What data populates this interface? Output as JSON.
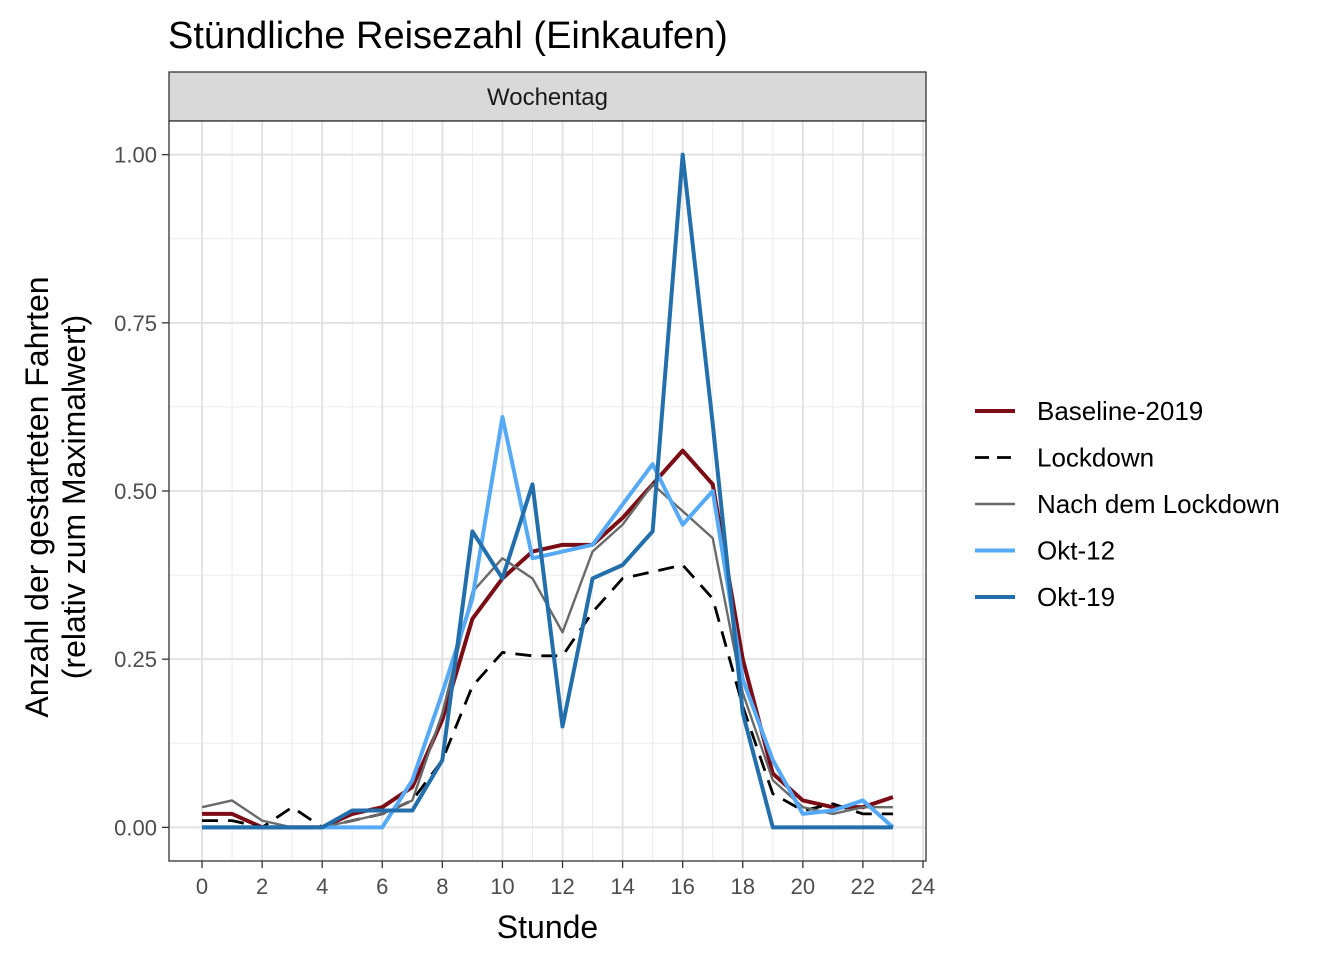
{
  "chart_data": {
    "type": "line",
    "title": "Stündliche Reisezahl (Einkaufen)",
    "facet_label": "Wochentag",
    "xlabel": "Stunde",
    "ylabel_lines": [
      "Anzahl der gestarteten Fahrten",
      "(relativ zum Maximalwert)"
    ],
    "xlim": [
      -1.1,
      24.1
    ],
    "ylim": [
      -0.05,
      1.05
    ],
    "x_ticks": [
      0,
      2,
      4,
      6,
      8,
      10,
      12,
      14,
      16,
      18,
      20,
      22,
      24
    ],
    "y_ticks": [
      0,
      0.25,
      0.5,
      0.75,
      1
    ],
    "y_tick_labels": [
      "0.00",
      "0.25",
      "0.50",
      "0.75",
      "1.00"
    ],
    "grid": true,
    "legend_position": "right",
    "x": [
      0,
      1,
      2,
      3,
      4,
      5,
      6,
      7,
      8,
      9,
      10,
      11,
      12,
      13,
      14,
      15,
      16,
      17,
      18,
      19,
      20,
      21,
      22,
      23
    ],
    "series": [
      {
        "name": "Baseline-2019",
        "color": "#7b0d16",
        "dash": "solid",
        "width": "thick",
        "values": [
          0.02,
          0.02,
          0.0,
          0.0,
          0.0,
          0.02,
          0.03,
          0.06,
          0.16,
          0.31,
          0.37,
          0.41,
          0.42,
          0.42,
          0.46,
          0.51,
          0.56,
          0.51,
          0.25,
          0.08,
          0.04,
          0.03,
          0.03,
          0.045
        ]
      },
      {
        "name": "Lockdown",
        "color": "#000000",
        "dash": "dashed",
        "width": "medium",
        "values": [
          0.01,
          0.01,
          0.0,
          0.03,
          0.0,
          0.01,
          0.02,
          0.04,
          0.1,
          0.21,
          0.26,
          0.255,
          0.255,
          0.32,
          0.37,
          0.38,
          0.39,
          0.34,
          0.18,
          0.05,
          0.025,
          0.035,
          0.02,
          0.02
        ]
      },
      {
        "name": "Nach dem Lockdown",
        "color": "#6a6a6a",
        "dash": "solid",
        "width": "thin",
        "values": [
          0.03,
          0.04,
          0.01,
          0.0,
          0.0,
          0.01,
          0.02,
          0.04,
          0.17,
          0.35,
          0.4,
          0.37,
          0.29,
          0.41,
          0.45,
          0.51,
          0.47,
          0.43,
          0.2,
          0.07,
          0.03,
          0.02,
          0.03,
          0.03
        ]
      },
      {
        "name": "Okt-12",
        "color": "#56aaf5",
        "dash": "solid",
        "width": "thick",
        "values": [
          0,
          0,
          0,
          0,
          0,
          0,
          0,
          0.07,
          0.2,
          0.34,
          0.61,
          0.4,
          0.41,
          0.42,
          0.48,
          0.54,
          0.45,
          0.5,
          0.22,
          0.1,
          0.02,
          0.025,
          0.04,
          0.0
        ]
      },
      {
        "name": "Okt-19",
        "color": "#236fab",
        "dash": "solid",
        "width": "thick",
        "values": [
          0,
          0,
          0,
          0,
          0,
          0.025,
          0.025,
          0.025,
          0.1,
          0.44,
          0.37,
          0.51,
          0.15,
          0.37,
          0.39,
          0.44,
          1.0,
          0.6,
          0.17,
          0,
          0,
          0,
          0,
          0
        ]
      }
    ]
  }
}
